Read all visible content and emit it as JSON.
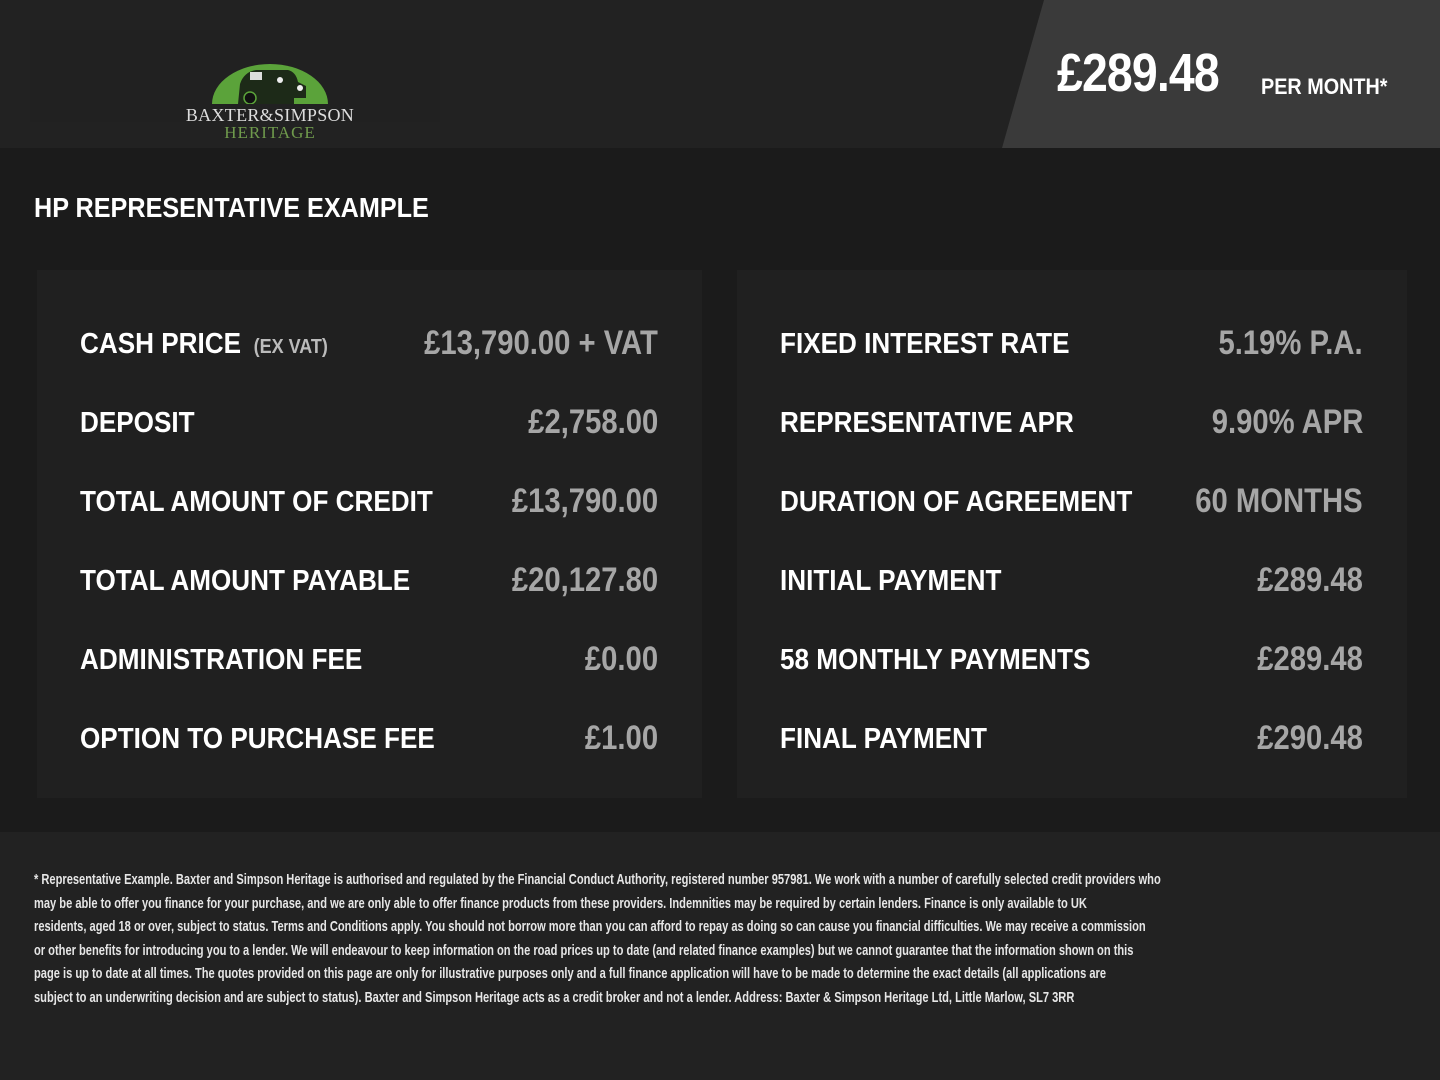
{
  "header": {
    "logo": {
      "line1": "BAXTER&SIMPSON",
      "line2": "HERITAGE",
      "accent": "#5ba33a"
    },
    "price": "£289.48",
    "price_suffix": "PER MONTH*"
  },
  "title": "HP REPRESENTATIVE EXAMPLE",
  "left_rows": [
    {
      "label": "CASH PRICE",
      "sub": "(EX VAT)",
      "value": "£13,790.00 + VAT"
    },
    {
      "label": "DEPOSIT",
      "value": "£2,758.00"
    },
    {
      "label": "TOTAL AMOUNT OF CREDIT",
      "value": "£13,790.00"
    },
    {
      "label": "TOTAL AMOUNT PAYABLE",
      "value": "£20,127.80"
    },
    {
      "label": "ADMINISTRATION FEE",
      "value": "£0.00"
    },
    {
      "label": "OPTION TO PURCHASE FEE",
      "value": "£1.00"
    }
  ],
  "right_rows": [
    {
      "label": "FIXED INTEREST RATE",
      "value": "5.19% P.A."
    },
    {
      "label": "REPRESENTATIVE APR",
      "value": "9.90% APR"
    },
    {
      "label": "DURATION OF AGREEMENT",
      "value": "60 MONTHS"
    },
    {
      "label": "INITIAL PAYMENT",
      "value": "£289.48"
    },
    {
      "label": "58 MONTHLY PAYMENTS",
      "value": "£289.48"
    },
    {
      "label": "FINAL PAYMENT",
      "value": "£290.48"
    }
  ],
  "disclaimer": [
    "* Representative Example. Baxter and Simpson Heritage is authorised and regulated by the Financial Conduct Authority, registered number 957981. We work with a number of carefully selected credit providers who",
    "may be able to offer you finance for your purchase, and we are only able to offer finance products from these providers. Indemnities may be required by certain lenders. Finance is only available to UK",
    "residents, aged 18 or over, subject to status. Terms and Conditions apply. You should not borrow more than you can afford to repay as doing so can cause you financial difficulties. We may receive a commission",
    "or other benefits for introducing you to a lender. We will endeavour to keep information on the road prices up to date (and related finance examples) but we cannot guarantee that the information shown on this",
    "page is up to date at all times. The quotes provided on this page are only for illustrative purposes only and a full finance application will have to be made to determine the exact details (all applications are",
    "subject to an underwriting decision and are subject to status). Baxter and Simpson Heritage acts as a credit broker and not a lender. Address: Baxter & Simpson Heritage Ltd, Little Marlow, SL7 3RR"
  ]
}
